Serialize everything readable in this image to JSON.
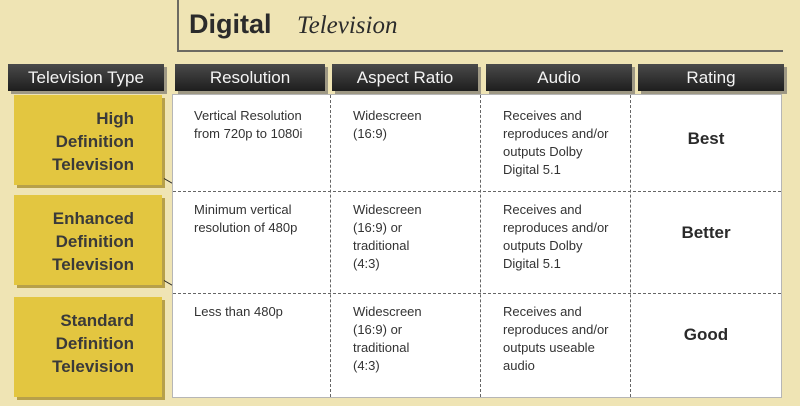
{
  "title": {
    "bold": "Digital",
    "italic": "Television"
  },
  "headers": {
    "television_type": "Television Type",
    "resolution": "Resolution",
    "aspect_ratio": "Aspect Ratio",
    "audio": "Audio",
    "rating": "Rating"
  },
  "rows": [
    {
      "type_lines": [
        "High",
        "Definition",
        "Television"
      ],
      "resolution_lines": [
        "Vertical Resolution",
        "from 720p to 1080i"
      ],
      "aspect_lines": [
        "Widescreen",
        "(16:9)"
      ],
      "audio_lines": [
        "Receives and",
        "reproduces and/or",
        "outputs Dolby",
        "Digital 5.1"
      ],
      "rating": "Best"
    },
    {
      "type_lines": [
        "Enhanced",
        "Definition",
        "Television"
      ],
      "resolution_lines": [
        "Minimum vertical",
        "resolution of 480p"
      ],
      "aspect_lines": [
        "Widescreen",
        "(16:9) or",
        "traditional",
        "(4:3)"
      ],
      "audio_lines": [
        "Receives and",
        "reproduces and/or",
        "outputs Dolby",
        "Digital 5.1"
      ],
      "rating": "Better"
    },
    {
      "type_lines": [
        "Standard",
        "Definition",
        "Television"
      ],
      "resolution_lines": [
        "Less than 480p"
      ],
      "aspect_lines": [
        "Widescreen",
        "(16:9) or",
        "traditional",
        "(4:3)"
      ],
      "audio_lines": [
        "Receives and",
        "reproduces and/or",
        "outputs useable",
        "audio"
      ],
      "rating": "Good"
    }
  ]
}
